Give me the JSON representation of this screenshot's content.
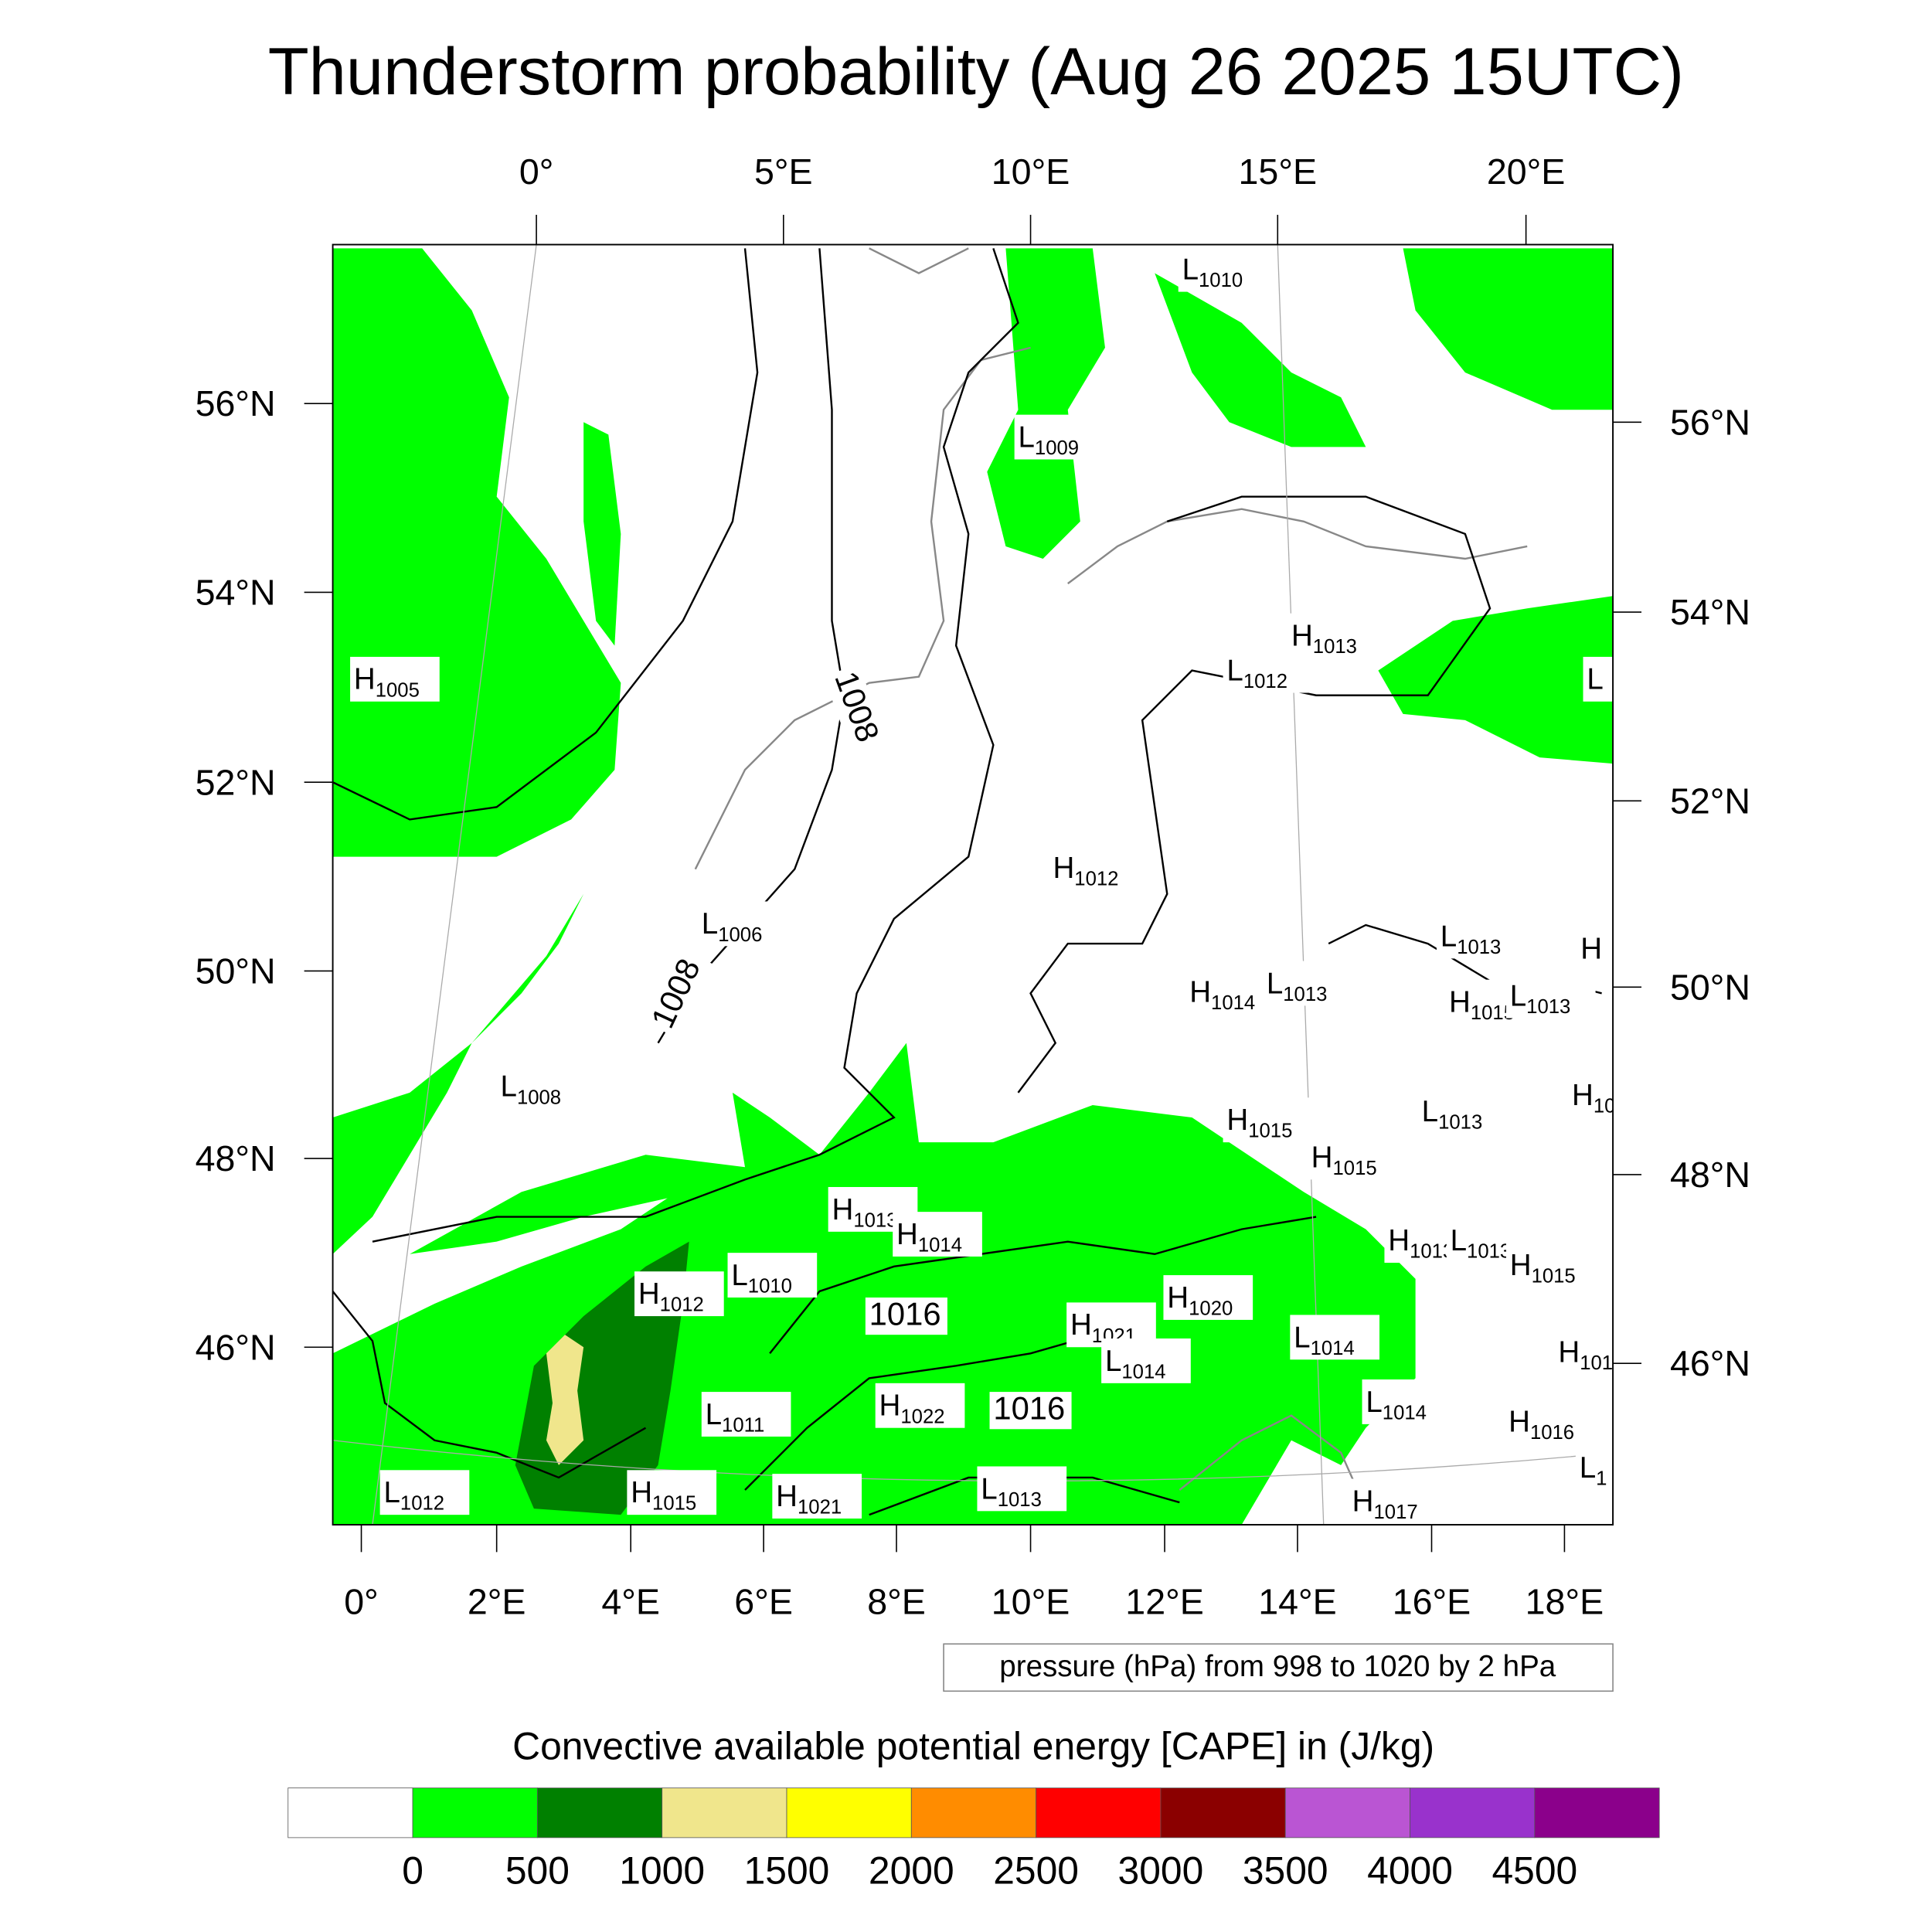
{
  "chart_data": {
    "type": "heatmap",
    "title": "Thunderstorm probability (Aug 26 2025 15UTC)",
    "top_lon_ticks": [
      "0°",
      "5°E",
      "10°E",
      "15°E",
      "20°E"
    ],
    "bottom_lon_ticks": [
      "0°",
      "2°E",
      "4°E",
      "6°E",
      "8°E",
      "10°E",
      "12°E",
      "14°E",
      "16°E",
      "18°E"
    ],
    "left_lat_ticks": [
      "56°N",
      "54°N",
      "52°N",
      "50°N",
      "48°N",
      "46°N"
    ],
    "right_lat_ticks": [
      "56°N",
      "54°N",
      "52°N",
      "50°N",
      "48°N",
      "46°N"
    ],
    "contour_info": "pressure (hPa) from 998 to 1020 by 2 hPa",
    "contour_labels": [
      "1008",
      "1008",
      "1016",
      "1016"
    ],
    "pressure_centers": [
      {
        "t": "H",
        "v": "1005"
      },
      {
        "t": "L",
        "v": "1010"
      },
      {
        "t": "L",
        "v": "1009"
      },
      {
        "t": "H",
        "v": "1013"
      },
      {
        "t": "L",
        "v": "1012"
      },
      {
        "t": "L",
        "v": ""
      },
      {
        "t": "H",
        "v": "1012"
      },
      {
        "t": "L",
        "v": "1006"
      },
      {
        "t": "L",
        "v": "1013"
      },
      {
        "t": "H",
        "v": ""
      },
      {
        "t": "H",
        "v": "1014"
      },
      {
        "t": "L",
        "v": "1013"
      },
      {
        "t": "H",
        "v": "1015"
      },
      {
        "t": "L",
        "v": "1013"
      },
      {
        "t": "L",
        "v": "1008"
      },
      {
        "t": "H",
        "v": "1015"
      },
      {
        "t": "L",
        "v": "1013"
      },
      {
        "t": "H",
        "v": "10"
      },
      {
        "t": "H",
        "v": "1015"
      },
      {
        "t": "H",
        "v": "1013"
      },
      {
        "t": "H",
        "v": "1014"
      },
      {
        "t": "H",
        "v": "1013"
      },
      {
        "t": "L",
        "v": "1013"
      },
      {
        "t": "H",
        "v": "1015"
      },
      {
        "t": "H",
        "v": "1012"
      },
      {
        "t": "L",
        "v": "1010"
      },
      {
        "t": "H",
        "v": "1020"
      },
      {
        "t": "H",
        "v": "1021"
      },
      {
        "t": "L",
        "v": "1014"
      },
      {
        "t": "L",
        "v": "1014"
      },
      {
        "t": "H",
        "v": "101"
      },
      {
        "t": "L",
        "v": "1014"
      },
      {
        "t": "L",
        "v": "1011"
      },
      {
        "t": "H",
        "v": "1022"
      },
      {
        "t": "H",
        "v": "1016"
      },
      {
        "t": "L",
        "v": "1"
      },
      {
        "t": "L",
        "v": "1012"
      },
      {
        "t": "H",
        "v": "1015"
      },
      {
        "t": "H",
        "v": "1021"
      },
      {
        "t": "L",
        "v": "1013"
      },
      {
        "t": "H",
        "v": "1017"
      }
    ],
    "colorbar": {
      "title": "Convective available potential energy [CAPE] in (J/kg)",
      "tick_labels": [
        "0",
        "500",
        "1000",
        "1500",
        "2000",
        "2500",
        "3000",
        "3500",
        "4000",
        "4500"
      ],
      "colors": [
        "#ffffff",
        "#00ff00",
        "#008000",
        "#f0e68c",
        "#ffff00",
        "#ff8c00",
        "#ff0000",
        "#8b0000",
        "#ba55d3",
        "#9932cc",
        "#8b008b"
      ]
    }
  }
}
